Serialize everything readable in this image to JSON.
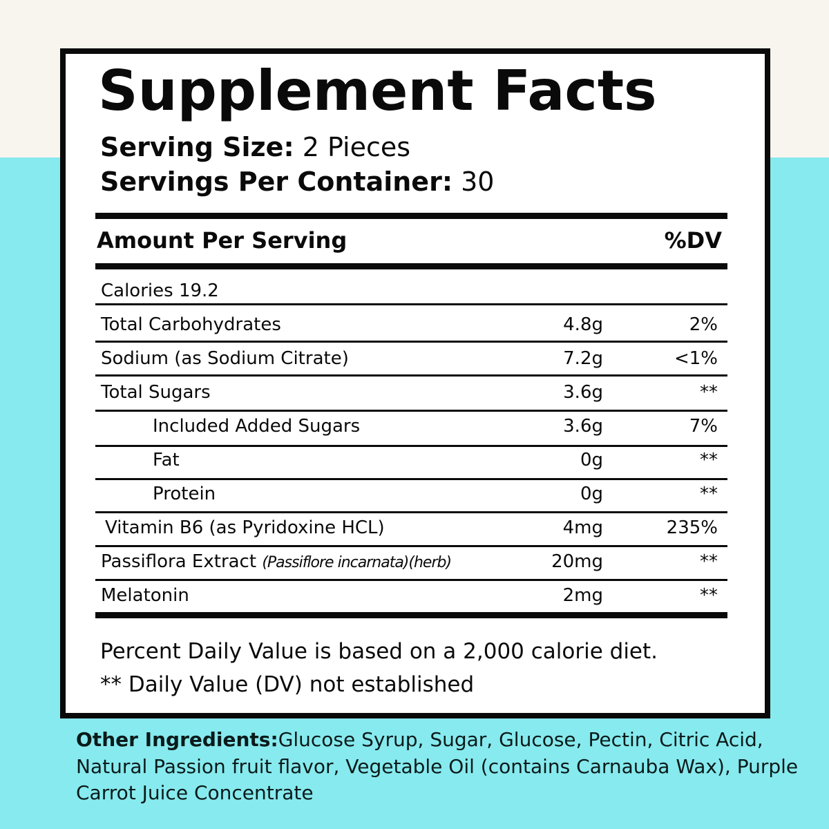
{
  "title": "Supplement Facts",
  "serving_size": {
    "label": "Serving Size:",
    "value": " 2 Pieces"
  },
  "servings_per_container": {
    "label": "Servings Per Container:",
    "value": " 30"
  },
  "header": {
    "amount_per_serving": "Amount Per Serving",
    "dv": "%DV"
  },
  "rows": [
    {
      "name": "Calories 19.2",
      "latin": "",
      "amount": "",
      "dv": ""
    },
    {
      "name": "Total Carbohydrates",
      "latin": "",
      "amount": "4.8g",
      "dv": "2%"
    },
    {
      "name": "Sodium (as Sodium Citrate)",
      "latin": "",
      "amount": "7.2g",
      "dv": "<1%"
    },
    {
      "name": "Total Sugars",
      "latin": "",
      "amount": "3.6g",
      "dv": "**"
    },
    {
      "name": "Included Added Sugars",
      "latin": "",
      "amount": "3.6g",
      "dv": "7%"
    },
    {
      "name": "Fat",
      "latin": "",
      "amount": "0g",
      "dv": "**"
    },
    {
      "name": "Protein",
      "latin": "",
      "amount": "0g",
      "dv": "**"
    },
    {
      "name": "Vitamin B6 (as Pyridoxine HCL)",
      "latin": "",
      "amount": "4mg",
      "dv": "235%"
    },
    {
      "name": "Passiflora Extract ",
      "latin": "(Passiflore incarnata)(herb)",
      "amount": "20mg",
      "dv": "**"
    },
    {
      "name": "Melatonin",
      "latin": "",
      "amount": "2mg",
      "dv": "**"
    }
  ],
  "footnotes": {
    "daily_value": "Percent Daily Value is based on a 2,000 calorie diet.",
    "not_established": "** Daily Value (DV) not established"
  },
  "other_ingredients": {
    "label": "Other Ingredients:",
    "text": "Glucose Syrup,  Sugar, Glucose, Pectin, Citric Acid, Natural Passion fruit flavor, Vegetable Oil (contains Carnauba Wax), Purple Carrot Juice Concentrate"
  },
  "colors": {
    "cyan_background": "#87eaee",
    "cream_background": "#f8f4ee",
    "ink": "#0a0a0a"
  }
}
